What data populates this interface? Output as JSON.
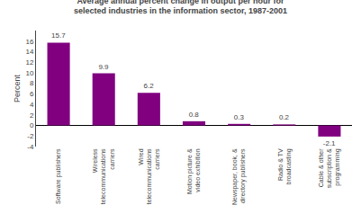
{
  "chart_data": {
    "type": "bar",
    "title": "Average annual percent change in output per hour for\nselected industries in the information sector, 1987-2001",
    "categories": [
      "Software publishers",
      "Wireless\ntelecommunications\ncarriers",
      "Wired\ntelecommunications\ncarriers",
      "Motion picture &\nvideo exhibition",
      "Newspaper, book, &\ndirectory publishers",
      "Radio & TV\nbroadcasting",
      "Cable & other\nsubscription &\nprogramming"
    ],
    "values": [
      15.7,
      9.9,
      6.2,
      0.8,
      0.3,
      0.2,
      -2.1
    ],
    "color": "#800080",
    "ylabel": "Percent",
    "ylim": [
      -4,
      18
    ],
    "yticks": [
      -4,
      -2,
      0,
      2,
      4,
      6,
      8,
      10,
      12,
      14,
      16
    ],
    "grid": false,
    "data_labels": true
  }
}
